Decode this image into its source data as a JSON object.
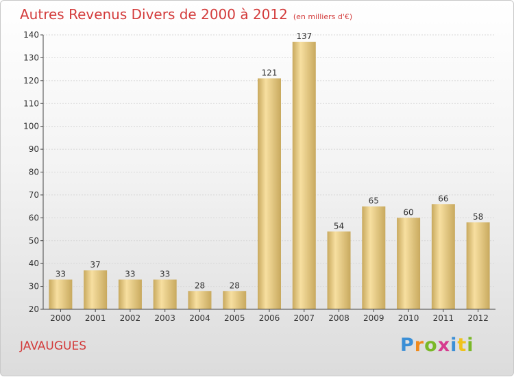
{
  "title": "Autres Revenus Divers de 2000 à 2012",
  "subtitle": "(en milliers d'€)",
  "location": "JAVAUGUES",
  "brand": {
    "text": "Proxiti",
    "letters": [
      {
        "char": "P",
        "color": "#3b8fd6"
      },
      {
        "char": "r",
        "color": "#f08a1c"
      },
      {
        "char": "o",
        "color": "#7ab828"
      },
      {
        "char": "x",
        "color": "#d63b8f"
      },
      {
        "char": "i",
        "color": "#3b8fd6"
      },
      {
        "char": "t",
        "color": "#f0c21c"
      },
      {
        "char": "i",
        "color": "#7ab828"
      }
    ]
  },
  "colors": {
    "title": "#d33b3b",
    "bar_light": "#f7dfa0",
    "bar_dark": "#c8a95e",
    "axis": "#444444",
    "grid": "#d8d8d8"
  },
  "chart_data": {
    "type": "bar",
    "title": "Autres Revenus Divers de 2000 à 2012",
    "subtitle": "(en milliers d'€)",
    "categories": [
      "2000",
      "2001",
      "2002",
      "2003",
      "2004",
      "2005",
      "2006",
      "2007",
      "2008",
      "2009",
      "2010",
      "2011",
      "2012"
    ],
    "values": [
      33,
      37,
      33,
      33,
      28,
      28,
      121,
      137,
      54,
      65,
      60,
      66,
      58
    ],
    "ylim": [
      20,
      140
    ],
    "yticks": [
      20,
      30,
      40,
      50,
      60,
      70,
      80,
      90,
      100,
      110,
      120,
      130,
      140
    ],
    "xlabel": "",
    "ylabel": "",
    "grid": true,
    "data_labels": true
  }
}
